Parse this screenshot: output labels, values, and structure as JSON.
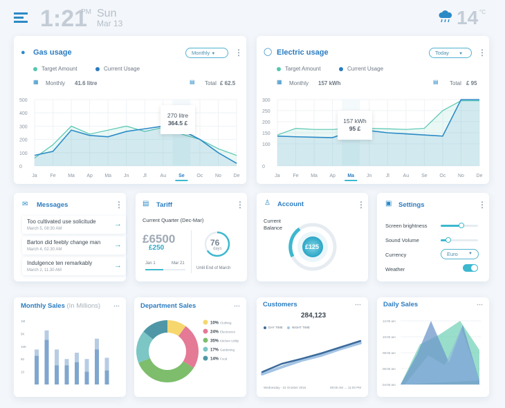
{
  "header": {
    "time": "1:21",
    "ampm": "PM",
    "day": "Sun",
    "date": "Mar 13",
    "temp": "14",
    "temp_unit": "°C"
  },
  "gas": {
    "title": "Gas usage",
    "dropdown": "Monthly",
    "legend_target": "Target Amount",
    "legend_current": "Current Usage",
    "period": "Monthly",
    "period_value": "41.6 litre",
    "total_label": "Total",
    "total_value": "£ 62.5",
    "tooltip_line1": "270 litre",
    "tooltip_line2": "364.5 £"
  },
  "electric": {
    "title": "Electric usage",
    "dropdown": "Today",
    "legend_target": "Target Amount",
    "legend_current": "Current Usage",
    "period": "Monthly",
    "period_value": "157 kWh",
    "total_label": "Total",
    "total_value": "£ 95",
    "tooltip_line1": "157 kWh",
    "tooltip_line2": "95 £"
  },
  "messages": {
    "title": "Messages",
    "items": [
      {
        "text": "Too cultivated use solicitude",
        "date": "March 5, 08:30 AM"
      },
      {
        "text": "Barton did feebly change man",
        "date": "March 4, 02.30 AM"
      },
      {
        "text": "Indulgence ten remarkably",
        "date": "March 2, 11.30 AM"
      }
    ]
  },
  "tariff": {
    "title": "Tariff",
    "quarter": "Current Quarter (Dec-Mar)",
    "amount": "£6500",
    "sub_amount": "£250",
    "from": "Jan 1",
    "to": "Mar 21",
    "days": "76",
    "days_unit": "days",
    "caption": "Until End of March"
  },
  "account": {
    "title": "Account",
    "label_line1": "Current",
    "label_line2": "Balance",
    "balance": "£125"
  },
  "settings": {
    "title": "Settings",
    "brightness": "Screen brightness",
    "sound": "Sound Volume",
    "currency": "Currency",
    "currency_value": "Euro",
    "weather": "Weather",
    "brightness_level": 0.55,
    "sound_level": 0.2,
    "weather_on": true
  },
  "customers": {
    "title": "Customers",
    "count": "284,123",
    "legend_day": "DAY TIME",
    "legend_night": "NIGHT TIME",
    "footer_left": "Wednesday - 22 October 2016",
    "footer_right": "08:00 AM → 11:00 PM"
  },
  "dept": {
    "title": "Department Sales"
  },
  "monthly": {
    "title": "Monthly Sales",
    "title_suffix": "(In Millions)"
  },
  "daily": {
    "title": "Daily Sales"
  },
  "chart_data": [
    {
      "type": "area",
      "title": "Gas usage",
      "categories": [
        "Ja",
        "Fe",
        "Ma",
        "Ap",
        "Ma",
        "Jn",
        "Jl",
        "Au",
        "Se",
        "Oc",
        "No",
        "De"
      ],
      "ylim": [
        0,
        500
      ],
      "yticks": [
        0,
        100,
        200,
        300,
        400,
        500
      ],
      "series": [
        {
          "name": "Target Amount",
          "values": [
            60,
            160,
            300,
            240,
            270,
            300,
            260,
            290,
            240,
            200,
            130,
            80
          ]
        },
        {
          "name": "Current Usage",
          "values": [
            80,
            110,
            270,
            230,
            220,
            260,
            280,
            300,
            270,
            200,
            100,
            20
          ]
        }
      ],
      "selected": "Se"
    },
    {
      "type": "area",
      "title": "Electric usage",
      "categories": [
        "Ja",
        "Fe",
        "Ma",
        "Ap",
        "Ma",
        "Jn",
        "Jl",
        "Au",
        "Se",
        "Oc",
        "No",
        "De"
      ],
      "ylim": [
        0,
        300
      ],
      "yticks": [
        0,
        100,
        150,
        200,
        250,
        300
      ],
      "series": [
        {
          "name": "Target Amount",
          "values": [
            140,
            170,
            165,
            165,
            170,
            170,
            168,
            165,
            170,
            250,
            295,
            295
          ]
        },
        {
          "name": "Current Usage",
          "values": [
            135,
            132,
            130,
            128,
            157,
            160,
            150,
            145,
            140,
            135,
            300,
            300
          ]
        }
      ],
      "selected": "Ma"
    },
    {
      "type": "pie",
      "title": "Department Sales",
      "series": [
        {
          "name": "Clothing",
          "value": 10,
          "color": "#f5d76e"
        },
        {
          "name": "Electronics",
          "value": 24,
          "color": "#e47a95"
        },
        {
          "name": "Kitchen Utility",
          "value": 35,
          "color": "#7dbd6c"
        },
        {
          "name": "Gardening",
          "value": 17,
          "color": "#7cc6c6"
        },
        {
          "name": "Food",
          "value": 14,
          "color": "#4f97a6"
        }
      ],
      "labels": [
        "10%",
        "24%",
        "35%",
        "17%",
        "14%"
      ]
    },
    {
      "type": "bar",
      "title": "Monthly Sales",
      "ylabels": [
        "",
        "10",
        "50",
        "10K",
        "5K",
        "1M"
      ],
      "series": [
        {
          "name": "back",
          "values": [
            0.55,
            0.85,
            0.55,
            0.4,
            0.5,
            0.4,
            0.72,
            0.42
          ]
        },
        {
          "name": "front",
          "values": [
            0.45,
            0.7,
            0.3,
            0.3,
            0.35,
            0.2,
            0.55,
            0.22
          ]
        }
      ]
    },
    {
      "type": "line",
      "title": "Customers",
      "series": [
        {
          "name": "DAY TIME",
          "values": [
            0.1,
            0.3,
            0.42,
            0.55,
            0.7,
            0.85
          ]
        },
        {
          "name": "NIGHT TIME",
          "values": [
            0.05,
            0.22,
            0.38,
            0.5,
            0.66,
            0.8
          ]
        }
      ]
    },
    {
      "type": "area",
      "title": "Daily Sales",
      "yticks": [
        "04:00 am",
        "06:00 am",
        "08:00 am",
        "10:00 am",
        "12:00 am"
      ]
    }
  ]
}
